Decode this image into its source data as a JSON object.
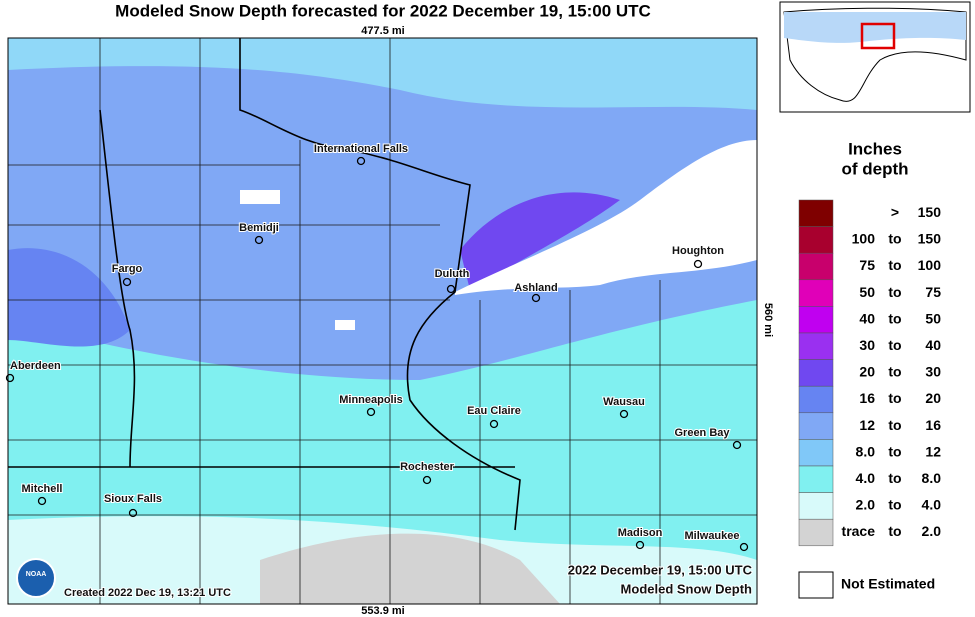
{
  "header": {
    "title": "Modeled Snow Depth forecasted for 2022 December 19, 15:00 UTC",
    "top_scale": "477.5 mi",
    "bottom_scale": "553.9 mi",
    "side_scale": "560 mi"
  },
  "cities": [
    "International Falls",
    "Bemidji",
    "Fargo",
    "Duluth",
    "Ashland",
    "Houghton",
    "Aberdeen",
    "Minneapolis",
    "Eau Claire",
    "Wausau",
    "Green Bay",
    "Rochester",
    "Mitchell",
    "Sioux Falls",
    "Madison",
    "Milwaukee"
  ],
  "footer": {
    "created": "Created 2022 Dec 19, 13:21 UTC",
    "valid": "2022 December 19, 15:00 UTC",
    "product": "Modeled Snow Depth",
    "logo": "NOAA"
  },
  "legend": {
    "title": [
      "Inches",
      "of depth"
    ],
    "rows": [
      {
        "op": ">",
        "value": "150",
        "color": "#7f0000"
      },
      {
        "from": "100",
        "sep": "to",
        "to": "150",
        "color": "#a8002e"
      },
      {
        "from": "75",
        "sep": "to",
        "to": "100",
        "color": "#c8006c"
      },
      {
        "from": "50",
        "sep": "to",
        "to": "75",
        "color": "#e000b8"
      },
      {
        "from": "40",
        "sep": "to",
        "to": "50",
        "color": "#c000f0"
      },
      {
        "from": "30",
        "sep": "to",
        "to": "40",
        "color": "#9a30f0"
      },
      {
        "from": "20",
        "sep": "to",
        "to": "30",
        "color": "#7048f0"
      },
      {
        "from": "16",
        "sep": "to",
        "to": "20",
        "color": "#6684f2"
      },
      {
        "from": "12",
        "sep": "to",
        "to": "16",
        "color": "#80a8f5"
      },
      {
        "from": "8.0",
        "sep": "to",
        "to": "12",
        "color": "#80c8f8"
      },
      {
        "from": "4.0",
        "sep": "to",
        "to": "8.0",
        "color": "#80f0f0"
      },
      {
        "from": "2.0",
        "sep": "to",
        "to": "4.0",
        "color": "#d8fafa"
      },
      {
        "from": "trace",
        "sep": "to",
        "to": "2.0",
        "color": "#d3d3d3"
      }
    ],
    "not_estimated": "Not Estimated"
  }
}
